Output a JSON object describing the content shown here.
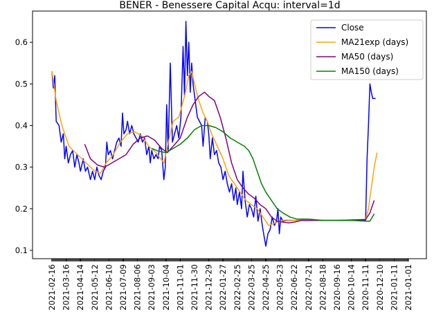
{
  "chart_data": {
    "type": "line",
    "title": "BENER - Benessere Capital Acqu: interval=1d",
    "xlabel": "",
    "ylabel": "",
    "ylim": [
      0.08,
      0.675
    ],
    "yticks": [
      0.1,
      0.2,
      0.3,
      0.4,
      0.5,
      0.6
    ],
    "ytick_labels": [
      "0.1",
      "0.2",
      "0.3",
      "0.4",
      "0.5",
      "0.6"
    ],
    "xtick_labels": [
      "2021-02-16",
      "2021-03-16",
      "2021-04-14",
      "2021-05-12",
      "2021-06-10",
      "2021-07-09",
      "2021-08-06",
      "2021-09-03",
      "2021-10-04",
      "2021-11-01",
      "2021-11-30",
      "2021-12-29",
      "2022-01-27",
      "2022-02-25",
      "2022-03-25",
      "2022-04-25",
      "2022-05-23",
      "2022-06-22",
      "2022-07-21",
      "2022-08-18",
      "2020-09-16",
      "2020-10-14",
      "2020-11-11",
      "2020-12-10",
      "2021-01-11",
      "2021-01-01"
    ],
    "x_range": [
      0,
      26
    ],
    "grid": false,
    "legend_position": "upper right",
    "series": [
      {
        "name": "Close",
        "color": "#0000ff",
        "points": [
          [
            0.0,
            0.53
          ],
          [
            0.1,
            0.49
          ],
          [
            0.2,
            0.52
          ],
          [
            0.3,
            0.41
          ],
          [
            0.5,
            0.4
          ],
          [
            0.65,
            0.36
          ],
          [
            0.8,
            0.38
          ],
          [
            0.9,
            0.32
          ],
          [
            1.0,
            0.35
          ],
          [
            1.15,
            0.31
          ],
          [
            1.3,
            0.33
          ],
          [
            1.45,
            0.34
          ],
          [
            1.6,
            0.3
          ],
          [
            1.75,
            0.33
          ],
          [
            1.9,
            0.31
          ],
          [
            2.0,
            0.29
          ],
          [
            2.2,
            0.32
          ],
          [
            2.35,
            0.29
          ],
          [
            2.5,
            0.3
          ],
          [
            2.7,
            0.27
          ],
          [
            2.85,
            0.29
          ],
          [
            3.0,
            0.27
          ],
          [
            3.15,
            0.3
          ],
          [
            3.3,
            0.28
          ],
          [
            3.45,
            0.27
          ],
          [
            3.6,
            0.29
          ],
          [
            3.75,
            0.3
          ],
          [
            3.85,
            0.36
          ],
          [
            3.95,
            0.33
          ],
          [
            4.1,
            0.34
          ],
          [
            4.25,
            0.32
          ],
          [
            4.4,
            0.34
          ],
          [
            4.55,
            0.36
          ],
          [
            4.7,
            0.37
          ],
          [
            4.85,
            0.35
          ],
          [
            4.95,
            0.43
          ],
          [
            5.05,
            0.38
          ],
          [
            5.2,
            0.39
          ],
          [
            5.3,
            0.41
          ],
          [
            5.45,
            0.38
          ],
          [
            5.6,
            0.4
          ],
          [
            5.75,
            0.38
          ],
          [
            5.9,
            0.37
          ],
          [
            6.05,
            0.36
          ],
          [
            6.2,
            0.38
          ],
          [
            6.35,
            0.36
          ],
          [
            6.5,
            0.37
          ],
          [
            6.65,
            0.33
          ],
          [
            6.8,
            0.35
          ],
          [
            6.9,
            0.31
          ],
          [
            7.0,
            0.34
          ],
          [
            7.15,
            0.32
          ],
          [
            7.3,
            0.33
          ],
          [
            7.45,
            0.32
          ],
          [
            7.55,
            0.35
          ],
          [
            7.7,
            0.34
          ],
          [
            7.85,
            0.27
          ],
          [
            7.95,
            0.3
          ],
          [
            8.05,
            0.45
          ],
          [
            8.15,
            0.34
          ],
          [
            8.3,
            0.55
          ],
          [
            8.45,
            0.36
          ],
          [
            8.6,
            0.38
          ],
          [
            8.75,
            0.4
          ],
          [
            8.9,
            0.37
          ],
          [
            9.05,
            0.42
          ],
          [
            9.2,
            0.59
          ],
          [
            9.3,
            0.47
          ],
          [
            9.4,
            0.65
          ],
          [
            9.5,
            0.52
          ],
          [
            9.6,
            0.6
          ],
          [
            9.7,
            0.48
          ],
          [
            9.8,
            0.55
          ],
          [
            9.9,
            0.5
          ],
          [
            10.05,
            0.46
          ],
          [
            10.2,
            0.42
          ],
          [
            10.35,
            0.41
          ],
          [
            10.5,
            0.4
          ],
          [
            10.6,
            0.35
          ],
          [
            10.75,
            0.42
          ],
          [
            10.9,
            0.41
          ],
          [
            11.0,
            0.38
          ],
          [
            11.1,
            0.32
          ],
          [
            11.25,
            0.37
          ],
          [
            11.4,
            0.33
          ],
          [
            11.55,
            0.34
          ],
          [
            11.7,
            0.31
          ],
          [
            11.85,
            0.3
          ],
          [
            12.0,
            0.27
          ],
          [
            12.15,
            0.29
          ],
          [
            12.3,
            0.26
          ],
          [
            12.45,
            0.24
          ],
          [
            12.6,
            0.26
          ],
          [
            12.75,
            0.22
          ],
          [
            12.9,
            0.25
          ],
          [
            13.0,
            0.21
          ],
          [
            13.15,
            0.24
          ],
          [
            13.3,
            0.2
          ],
          [
            13.4,
            0.29
          ],
          [
            13.55,
            0.22
          ],
          [
            13.7,
            0.18
          ],
          [
            13.85,
            0.21
          ],
          [
            14.0,
            0.2
          ],
          [
            14.15,
            0.18
          ],
          [
            14.3,
            0.23
          ],
          [
            14.45,
            0.17
          ],
          [
            14.6,
            0.2
          ],
          [
            14.75,
            0.16
          ],
          [
            14.9,
            0.13
          ],
          [
            15.0,
            0.11
          ],
          [
            15.15,
            0.14
          ],
          [
            15.3,
            0.15
          ],
          [
            15.45,
            0.18
          ],
          [
            15.6,
            0.16
          ],
          [
            15.75,
            0.17
          ],
          [
            15.85,
            0.2
          ],
          [
            15.95,
            0.14
          ],
          [
            16.05,
            0.18
          ],
          [
            16.2,
            0.17
          ],
          [
            16.4,
            0.172
          ],
          [
            22.0,
            0.172
          ],
          [
            22.1,
            0.32
          ],
          [
            22.2,
            0.4
          ],
          [
            22.3,
            0.5
          ],
          [
            22.4,
            0.48
          ],
          [
            22.5,
            0.465
          ],
          [
            22.7,
            0.465
          ]
        ]
      },
      {
        "name": "MA21exp (days)",
        "color": "#ffa500",
        "points": [
          [
            0.0,
            0.53
          ],
          [
            0.3,
            0.46
          ],
          [
            0.7,
            0.4
          ],
          [
            1.2,
            0.35
          ],
          [
            1.8,
            0.33
          ],
          [
            2.4,
            0.31
          ],
          [
            3.0,
            0.29
          ],
          [
            3.4,
            0.285
          ],
          [
            3.8,
            0.31
          ],
          [
            4.3,
            0.33
          ],
          [
            4.8,
            0.36
          ],
          [
            5.3,
            0.38
          ],
          [
            5.8,
            0.385
          ],
          [
            6.3,
            0.375
          ],
          [
            6.8,
            0.35
          ],
          [
            7.3,
            0.335
          ],
          [
            7.85,
            0.31
          ],
          [
            8.1,
            0.35
          ],
          [
            8.5,
            0.41
          ],
          [
            8.9,
            0.42
          ],
          [
            9.3,
            0.47
          ],
          [
            9.6,
            0.52
          ],
          [
            9.8,
            0.53
          ],
          [
            10.0,
            0.5
          ],
          [
            10.3,
            0.46
          ],
          [
            10.6,
            0.43
          ],
          [
            10.9,
            0.41
          ],
          [
            11.2,
            0.38
          ],
          [
            11.6,
            0.35
          ],
          [
            12.0,
            0.32
          ],
          [
            12.4,
            0.28
          ],
          [
            12.8,
            0.26
          ],
          [
            13.2,
            0.24
          ],
          [
            13.6,
            0.22
          ],
          [
            14.0,
            0.21
          ],
          [
            14.4,
            0.2
          ],
          [
            14.8,
            0.18
          ],
          [
            15.2,
            0.16
          ],
          [
            15.6,
            0.165
          ],
          [
            16.0,
            0.17
          ],
          [
            16.4,
            0.173
          ],
          [
            17.0,
            0.172
          ],
          [
            20.0,
            0.172
          ],
          [
            22.0,
            0.174
          ],
          [
            22.2,
            0.2
          ],
          [
            22.4,
            0.25
          ],
          [
            22.6,
            0.3
          ],
          [
            22.8,
            0.335
          ]
        ]
      },
      {
        "name": "MA50 (days)",
        "color": "#800080",
        "points": [
          [
            2.3,
            0.355
          ],
          [
            2.7,
            0.32
          ],
          [
            3.2,
            0.305
          ],
          [
            3.7,
            0.3
          ],
          [
            4.2,
            0.31
          ],
          [
            4.7,
            0.32
          ],
          [
            5.2,
            0.33
          ],
          [
            5.7,
            0.355
          ],
          [
            6.2,
            0.37
          ],
          [
            6.7,
            0.375
          ],
          [
            7.2,
            0.365
          ],
          [
            7.7,
            0.345
          ],
          [
            8.1,
            0.335
          ],
          [
            8.5,
            0.35
          ],
          [
            9.0,
            0.37
          ],
          [
            9.5,
            0.42
          ],
          [
            9.9,
            0.45
          ],
          [
            10.3,
            0.47
          ],
          [
            10.7,
            0.48
          ],
          [
            11.0,
            0.47
          ],
          [
            11.4,
            0.46
          ],
          [
            11.8,
            0.42
          ],
          [
            12.2,
            0.37
          ],
          [
            12.6,
            0.31
          ],
          [
            13.0,
            0.27
          ],
          [
            13.4,
            0.25
          ],
          [
            13.8,
            0.235
          ],
          [
            14.2,
            0.225
          ],
          [
            14.6,
            0.21
          ],
          [
            15.0,
            0.2
          ],
          [
            15.4,
            0.18
          ],
          [
            15.8,
            0.17
          ],
          [
            16.2,
            0.168
          ],
          [
            16.6,
            0.166
          ],
          [
            17.0,
            0.168
          ],
          [
            17.5,
            0.172
          ],
          [
            20.0,
            0.172
          ],
          [
            22.0,
            0.174
          ],
          [
            22.3,
            0.19
          ],
          [
            22.6,
            0.22
          ]
        ]
      },
      {
        "name": "MA150 (days)",
        "color": "#008000",
        "points": [
          [
            7.0,
            0.345
          ],
          [
            7.5,
            0.338
          ],
          [
            8.0,
            0.335
          ],
          [
            8.5,
            0.345
          ],
          [
            9.0,
            0.355
          ],
          [
            9.5,
            0.37
          ],
          [
            10.0,
            0.39
          ],
          [
            10.5,
            0.4
          ],
          [
            11.0,
            0.4
          ],
          [
            11.5,
            0.395
          ],
          [
            12.0,
            0.385
          ],
          [
            12.5,
            0.37
          ],
          [
            13.0,
            0.36
          ],
          [
            13.5,
            0.35
          ],
          [
            13.8,
            0.34
          ],
          [
            14.1,
            0.32
          ],
          [
            14.4,
            0.29
          ],
          [
            14.7,
            0.26
          ],
          [
            15.0,
            0.24
          ],
          [
            15.4,
            0.22
          ],
          [
            15.8,
            0.2
          ],
          [
            16.2,
            0.19
          ],
          [
            16.7,
            0.18
          ],
          [
            17.2,
            0.175
          ],
          [
            18.0,
            0.175
          ],
          [
            19.0,
            0.172
          ],
          [
            20.0,
            0.172
          ],
          [
            21.0,
            0.172
          ],
          [
            22.0,
            0.17
          ],
          [
            22.3,
            0.17
          ],
          [
            22.6,
            0.188
          ]
        ]
      }
    ]
  }
}
